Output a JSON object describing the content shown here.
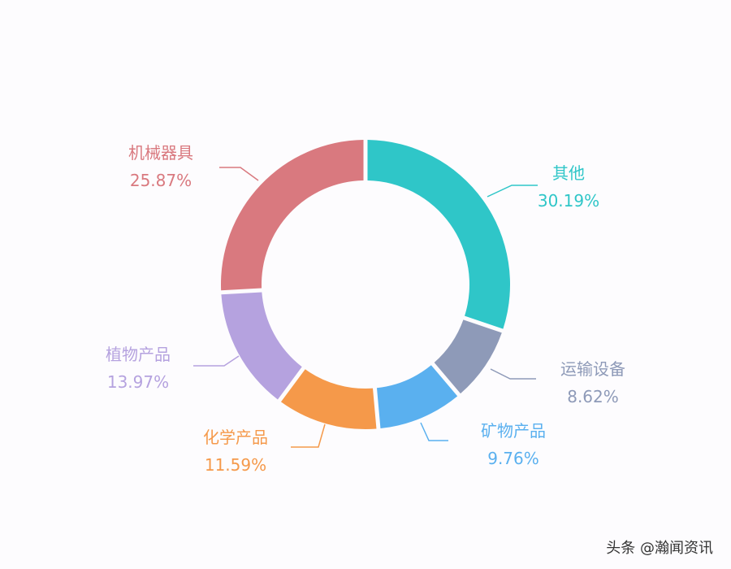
{
  "chart_data": {
    "type": "pie",
    "variant": "donut",
    "start": "12 o'clock, clockwise",
    "slices": [
      {
        "label": "其他",
        "value": 30.19,
        "pct": "30.19%",
        "color": "#2fc6c8"
      },
      {
        "label": "运输设备",
        "value": 8.62,
        "pct": "8.62%",
        "color": "#8e9ab8"
      },
      {
        "label": "矿物产品",
        "value": 9.76,
        "pct": "9.76%",
        "color": "#5ab0ef"
      },
      {
        "label": "化学产品",
        "value": 11.59,
        "pct": "11.59%",
        "color": "#f5994a"
      },
      {
        "label": "植物产品",
        "value": 13.97,
        "pct": "13.97%",
        "color": "#b5a2df"
      },
      {
        "label": "机械器具",
        "value": 25.87,
        "pct": "25.87%",
        "color": "#d9797f"
      }
    ]
  },
  "watermark": "头条 @瀚闻资讯"
}
